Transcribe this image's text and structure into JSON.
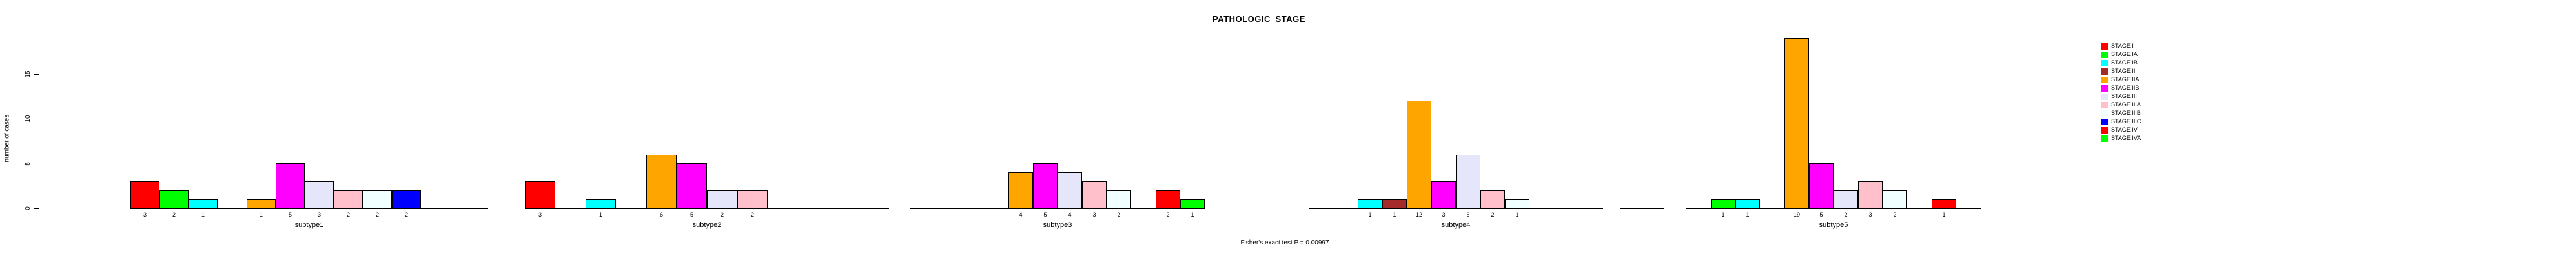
{
  "chart_data": {
    "type": "bar",
    "title": "PATHOLOGIC_STAGE",
    "ylabel": "number of cases",
    "caption": "Fisher's exact test P = 0.00997",
    "ylim": [
      0,
      19
    ],
    "yticks": [
      0,
      5,
      10,
      15
    ],
    "grid": false,
    "legend_position": "right",
    "categories": [
      "STAGE I",
      "STAGE IA",
      "STAGE IB",
      "STAGE II",
      "STAGE IIA",
      "STAGE IIB",
      "STAGE III",
      "STAGE IIIA",
      "STAGE IIIB",
      "STAGE IIIC",
      "STAGE IV",
      "STAGE IVA"
    ],
    "colors": [
      "#FF0000",
      "#00FF00",
      "#00FFFF",
      "#A52A2A",
      "#FFA500",
      "#FF00FF",
      "#E6E6FA",
      "#FFC0CB",
      "#F0FFFF",
      "#0000FF",
      "#FF0000",
      "#00FF00"
    ],
    "groups": [
      {
        "label": "subtype1",
        "values": [
          3,
          2,
          1,
          0,
          1,
          5,
          3,
          2,
          2,
          2,
          0,
          0
        ]
      },
      {
        "label": "subtype2",
        "values": [
          3,
          0,
          1,
          0,
          6,
          5,
          2,
          2,
          0,
          0,
          0,
          0
        ]
      },
      {
        "label": "subtype3",
        "values": [
          0,
          0,
          0,
          0,
          4,
          5,
          4,
          3,
          2,
          0,
          2,
          1
        ]
      },
      {
        "label": "subtype4",
        "values": [
          0,
          0,
          1,
          1,
          12,
          3,
          6,
          2,
          1,
          0,
          0,
          0
        ]
      },
      {
        "label": "subtype5",
        "values": [
          0,
          1,
          1,
          0,
          19,
          5,
          2,
          3,
          2,
          0,
          1,
          0
        ]
      }
    ]
  }
}
